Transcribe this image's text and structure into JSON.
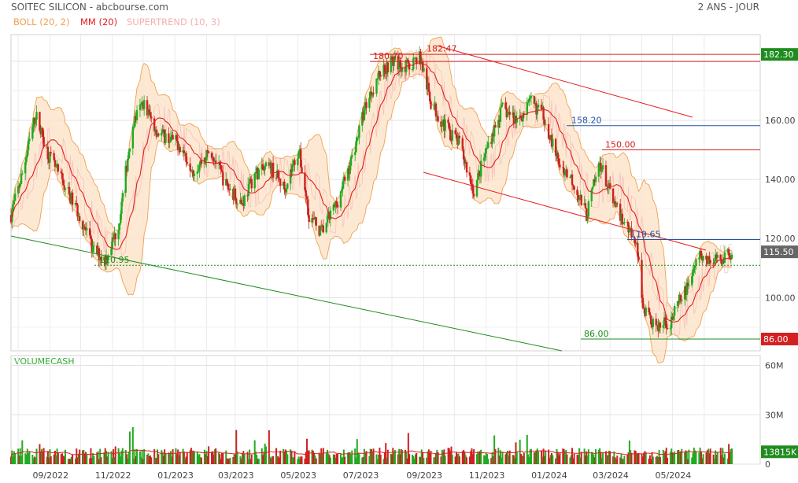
{
  "header": {
    "title": "SOITEC SILICON - abcbourse.com",
    "period": "2 ANS - JOUR"
  },
  "legend": [
    {
      "label": "BOLL (20, 2)",
      "color": "#f0a050"
    },
    {
      "label": "MM (20)",
      "color": "#e02020"
    },
    {
      "label": "SUPERTREND (10, 3)",
      "color": "#f4b0b0"
    }
  ],
  "volume_label": "VOLUMECASH",
  "colors": {
    "up": "#22aa22",
    "down": "#cc2222",
    "boll_fill": "#fde3c8",
    "boll_line": "#f0a050",
    "mm": "#e02020",
    "supertrend": "#f4b0b0",
    "trend_red": "#e81c24",
    "trend_green": "#1e8c1e",
    "level_blue": "#2256a8"
  },
  "chart_data": {
    "type": "candlestick",
    "title": "SOITEC SILICON",
    "price_axis": {
      "ticks": [
        100,
        120,
        140,
        160
      ],
      "ylim": [
        82,
        189
      ]
    },
    "volume_axis": {
      "ticks": [
        "0",
        "30M",
        "60M"
      ],
      "ylim": [
        0,
        66
      ]
    },
    "x_ticks": [
      "09/2022",
      "11/2022",
      "01/2023",
      "03/2023",
      "05/2023",
      "07/2023",
      "09/2023",
      "11/2023",
      "01/2024",
      "03/2024",
      "05/2024"
    ],
    "x_range": [
      "2022-07-25",
      "2024-06-28"
    ],
    "last_price": "115.50",
    "last_volume": "13815K",
    "levels": [
      {
        "label": "182.30",
        "value": 182.3,
        "color": "#d42020",
        "axis_tag": true,
        "tag_color": "#1e8c1e"
      },
      {
        "label": "180.70",
        "value": 180.7,
        "color": "#d42020"
      },
      {
        "label": "182.47",
        "value": 182.47,
        "color": "#d42020"
      },
      {
        "label": "158.20",
        "value": 158.2,
        "color": "#2256a8"
      },
      {
        "label": "150.00",
        "value": 150.0,
        "color": "#d42020"
      },
      {
        "label": "119.65",
        "value": 119.65,
        "color": "#2256a8"
      },
      {
        "label": "110.95",
        "value": 110.95,
        "color": "#1e8c1e"
      },
      {
        "label": "86.00",
        "value": 86.0,
        "color": "#1e8c1e",
        "axis_tag": true,
        "tag_color": "#d42020"
      }
    ],
    "price_path": [
      [
        "2022-07-25",
        128
      ],
      [
        "2022-08-05",
        142
      ],
      [
        "2022-08-18",
        162
      ],
      [
        "2022-08-31",
        148
      ],
      [
        "2022-09-15",
        138
      ],
      [
        "2022-09-30",
        128
      ],
      [
        "2022-10-13",
        116
      ],
      [
        "2022-10-25",
        113
      ],
      [
        "2022-11-07",
        124
      ],
      [
        "2022-11-20",
        158
      ],
      [
        "2022-12-01",
        166
      ],
      [
        "2022-12-15",
        156
      ],
      [
        "2023-01-05",
        152
      ],
      [
        "2023-01-20",
        143
      ],
      [
        "2023-02-05",
        150
      ],
      [
        "2023-02-20",
        138
      ],
      [
        "2023-03-08",
        132
      ],
      [
        "2023-03-20",
        142
      ],
      [
        "2023-04-05",
        144
      ],
      [
        "2023-04-18",
        137
      ],
      [
        "2023-05-02",
        150
      ],
      [
        "2023-05-12",
        128
      ],
      [
        "2023-05-24",
        122
      ],
      [
        "2023-06-08",
        132
      ],
      [
        "2023-06-22",
        146
      ],
      [
        "2023-07-07",
        166
      ],
      [
        "2023-07-20",
        176
      ],
      [
        "2023-08-01",
        180
      ],
      [
        "2023-08-16",
        178
      ],
      [
        "2023-08-28",
        182
      ],
      [
        "2023-09-08",
        166
      ],
      [
        "2023-09-22",
        158
      ],
      [
        "2023-10-06",
        152
      ],
      [
        "2023-10-20",
        136
      ],
      [
        "2023-11-03",
        152
      ],
      [
        "2023-11-17",
        164
      ],
      [
        "2023-12-01",
        160
      ],
      [
        "2023-12-15",
        166
      ],
      [
        "2023-12-27",
        162
      ],
      [
        "2024-01-10",
        146
      ],
      [
        "2024-01-24",
        140
      ],
      [
        "2024-02-07",
        128
      ],
      [
        "2024-02-20",
        146
      ],
      [
        "2024-03-05",
        131
      ],
      [
        "2024-03-18",
        124
      ],
      [
        "2024-03-26",
        120
      ],
      [
        "2024-04-03",
        96
      ],
      [
        "2024-04-15",
        90
      ],
      [
        "2024-04-29",
        92
      ],
      [
        "2024-05-13",
        102
      ],
      [
        "2024-05-27",
        114
      ],
      [
        "2024-06-10",
        112
      ],
      [
        "2024-06-28",
        115.5
      ]
    ]
  }
}
